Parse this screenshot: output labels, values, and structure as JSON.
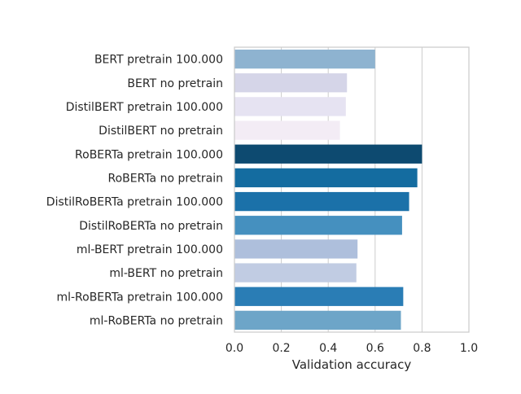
{
  "chart_data": {
    "type": "bar",
    "orientation": "horizontal",
    "categories": [
      "BERT pretrain 100.000",
      "BERT no pretrain",
      "DistilBERT pretrain 100.000",
      "DistilBERT no pretrain",
      "RoBERTa pretrain 100.000",
      "RoBERTa no pretrain",
      "DistilRoBERTa pretrain 100.000",
      "DistilRoBERTa no pretrain",
      "ml-BERT pretrain 100.000",
      "ml-BERT no pretrain",
      "ml-RoBERTa pretrain 100.000",
      "ml-RoBERTa no pretrain"
    ],
    "values": [
      0.6,
      0.48,
      0.475,
      0.45,
      0.8,
      0.78,
      0.745,
      0.715,
      0.525,
      0.52,
      0.72,
      0.71
    ],
    "colors": [
      "#8eb3d0",
      "#d5d5e8",
      "#e6e3f2",
      "#f3ecf5",
      "#0d4a70",
      "#146ca0",
      "#1b71a9",
      "#4590bf",
      "#aebfdc",
      "#c1cce3",
      "#2a7db5",
      "#6da5c8"
    ],
    "title": "",
    "xlabel": "Validation accuracy",
    "ylabel": "",
    "xlim": [
      0.0,
      1.0
    ],
    "xticks": [
      0.0,
      0.2,
      0.4,
      0.6,
      0.8,
      1.0
    ],
    "xtick_labels": [
      "0.0",
      "0.2",
      "0.4",
      "0.6",
      "0.8",
      "1.0"
    ],
    "grid": "vertical",
    "grid_color": "#cccccc",
    "axes_edge_color": "#cccccc"
  }
}
